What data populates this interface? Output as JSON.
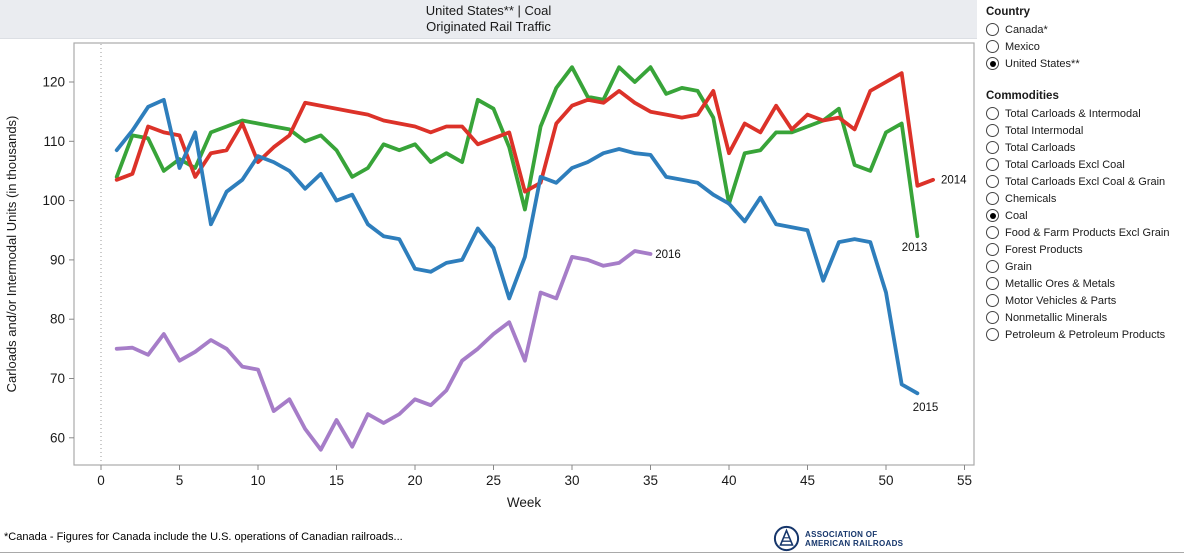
{
  "title": {
    "line1": "United States** | Coal",
    "line2": "Originated Rail Traffic"
  },
  "chart_data": {
    "type": "line",
    "title": "United States** | Coal — Originated Rail Traffic",
    "xlabel": "Week",
    "ylabel": "Carloads and/or Intermodal Units (in thousands)",
    "xlim": [
      -1.85,
      55.8
    ],
    "ylim": [
      55.4,
      126.6
    ],
    "xticks": [
      0,
      5,
      10,
      15,
      20,
      25,
      30,
      35,
      40,
      45,
      50,
      55
    ],
    "yticks": [
      60,
      70,
      80,
      90,
      100,
      110,
      120
    ],
    "grid": "dotted vertical line at week 0 only",
    "legend_position": "inline labels at line ends",
    "x_unit": "week number (data starts at week 1)",
    "series": [
      {
        "name": "2013",
        "color": "#38A439",
        "values": [
          104,
          111,
          110.5,
          105,
          107,
          105.5,
          111.5,
          112.5,
          113.5,
          113,
          112.5,
          112,
          110,
          111,
          108.5,
          104,
          105.5,
          109.5,
          108.5,
          109.5,
          106.5,
          108,
          106.5,
          117,
          115.5,
          109,
          98.5,
          112.5,
          119,
          122.5,
          117.5,
          117,
          122.5,
          120,
          122.5,
          118,
          119,
          118.5,
          114,
          99.5,
          108,
          108.5,
          111.5,
          111.5,
          112.5,
          113.5,
          115.5,
          106,
          105,
          111.5,
          113,
          94
        ]
      },
      {
        "name": "2014",
        "color": "#DC3229",
        "values": [
          103.5,
          104.5,
          112.5,
          111.5,
          111,
          104,
          108,
          108.5,
          113,
          106.5,
          109,
          111,
          116.5,
          116,
          115.5,
          115,
          114.5,
          113.5,
          113,
          112.5,
          111.5,
          112.5,
          112.5,
          109.5,
          110.5,
          111.5,
          101.5,
          103,
          113,
          116,
          117,
          116.5,
          118.5,
          116.5,
          115,
          114.5,
          114,
          114.5,
          118.5,
          108,
          113,
          111.5,
          116,
          112,
          114.5,
          113.5,
          114,
          112,
          118.5,
          120,
          121.5,
          102.5,
          103.5
        ]
      },
      {
        "name": "2015",
        "color": "#2E7EBC",
        "values": [
          108.5,
          111.8,
          115.8,
          117,
          105.5,
          111.5,
          96,
          101.5,
          103.5,
          107.5,
          106.5,
          105,
          102,
          104.5,
          100,
          101,
          96,
          94,
          93.5,
          88.5,
          88,
          89.5,
          90,
          95.3,
          92,
          83.5,
          90.5,
          104,
          103,
          105.5,
          106.5,
          108,
          108.7,
          108,
          107.7,
          104,
          103.5,
          103,
          101,
          99.5,
          96.5,
          100.5,
          96,
          95.5,
          95,
          86.5,
          93,
          93.5,
          93,
          84.5,
          69,
          67.5
        ]
      },
      {
        "name": "2016",
        "color": "#A67DC8",
        "values": [
          75,
          75.2,
          74,
          77.5,
          73,
          74.5,
          76.5,
          75,
          72,
          71.5,
          64.5,
          66.5,
          61.5,
          58,
          63,
          58.5,
          64,
          62.5,
          64,
          66.5,
          65.5,
          68,
          73,
          75,
          77.5,
          79.5,
          73,
          84.5,
          83.5,
          90.5,
          90,
          89,
          89.5,
          91.5,
          91
        ]
      }
    ],
    "end_labels": [
      {
        "text": "2014",
        "week": 53.5,
        "value": 103.6
      },
      {
        "text": "2013",
        "week": 51.0,
        "value": 92.2
      },
      {
        "text": "2016",
        "week": 35.3,
        "value": 91.0
      },
      {
        "text": "2015",
        "week": 51.7,
        "value": 65.2
      }
    ]
  },
  "sidebar": {
    "country_header": "Country",
    "country_options": [
      {
        "label": "Canada*",
        "selected": false
      },
      {
        "label": "Mexico",
        "selected": false
      },
      {
        "label": "United States**",
        "selected": true
      }
    ],
    "commodities_header": "Commodities",
    "commodity_options": [
      {
        "label": "Total Carloads & Intermodal",
        "selected": false
      },
      {
        "label": "Total Intermodal",
        "selected": false
      },
      {
        "label": "Total Carloads",
        "selected": false
      },
      {
        "label": "Total Carloads Excl Coal",
        "selected": false
      },
      {
        "label": "Total Carloads Excl Coal & Grain",
        "selected": false
      },
      {
        "label": "Chemicals",
        "selected": false
      },
      {
        "label": "Coal",
        "selected": true
      },
      {
        "label": "Food & Farm Products Excl Grain",
        "selected": false
      },
      {
        "label": "Forest Products",
        "selected": false
      },
      {
        "label": "Grain",
        "selected": false
      },
      {
        "label": "Metallic Ores & Metals",
        "selected": false
      },
      {
        "label": "Motor Vehicles & Parts",
        "selected": false
      },
      {
        "label": "Nonmetallic Minerals",
        "selected": false
      },
      {
        "label": "Petroleum & Petroleum Products",
        "selected": false
      }
    ]
  },
  "footer": {
    "note": "*Canada - Figures for Canada include the U.S. operations of Canadian railroads..."
  },
  "logo": {
    "line1": "ASSOCIATION OF",
    "line2": "AMERICAN RAILROADS"
  },
  "style_colors": {
    "titlebar_bg": "#eaecf0",
    "axis_gray": "#ababab",
    "logo_navy": "#16366b"
  }
}
